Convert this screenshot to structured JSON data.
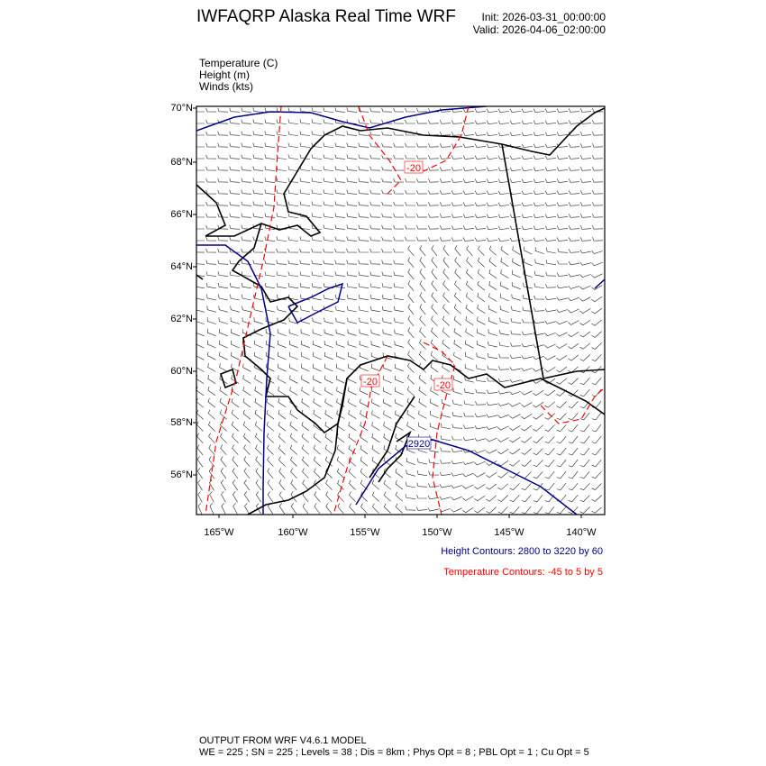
{
  "header": {
    "title": "IWFAQRP Alaska Real Time WRF",
    "init": "Init: 2026-03-31_00:00:00",
    "valid": "Valid: 2026-04-06_02:00:00"
  },
  "fields": [
    {
      "name": "Temperature",
      "unit": "(C)"
    },
    {
      "name": "Height",
      "unit": "(m)"
    },
    {
      "name": "Winds",
      "unit": "(kts)"
    }
  ],
  "fields_text": [
    "Temperature   (C)",
    "Height   (m)",
    "Winds   (kts)"
  ],
  "map": {
    "lat_labels": [
      "70°N",
      "68°N",
      "66°N",
      "64°N",
      "62°N",
      "60°N",
      "58°N",
      "56°N"
    ],
    "lon_labels": [
      "165°W",
      "160°W",
      "155°W",
      "150°W",
      "145°W",
      "140°W"
    ],
    "contour_labels": {
      "temperature": [
        "-20",
        "-20",
        "-20"
      ],
      "height": [
        "2920"
      ]
    },
    "colors": {
      "height": "#00008b",
      "temperature": "#ff0000",
      "coast": "#000000",
      "barbs": "#000000"
    }
  },
  "legend": {
    "height": "Height Contours: 2800 to 3220 by 60",
    "temperature": "Temperature Contours: -45 to 5 by 5"
  },
  "footer": {
    "line1": "OUTPUT FROM WRF V4.6.1 MODEL",
    "line2": "WE = 225 ; SN = 225 ; Levels = 38 ; Dis = 8km ; Phys Opt = 8 ; PBL Opt = 1 ; Cu Opt = 5"
  }
}
